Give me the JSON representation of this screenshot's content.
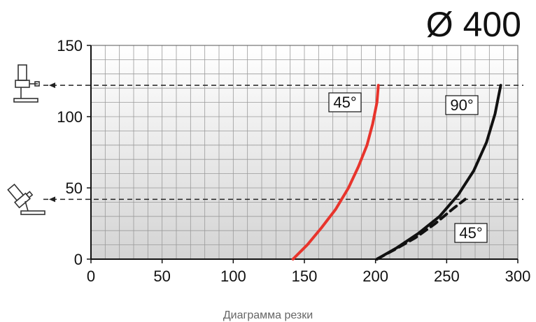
{
  "title": "Ø 400",
  "caption": "Диаграмма резки",
  "chart_data": {
    "type": "line",
    "xlim": [
      0,
      300
    ],
    "ylim": [
      0,
      150
    ],
    "x_ticks": [
      0,
      50,
      100,
      150,
      200,
      250,
      300
    ],
    "y_ticks": [
      0,
      50,
      100,
      150
    ],
    "grid": true,
    "reference_lines": [
      {
        "y": 122,
        "icon": "vertical-saw-head-icon"
      },
      {
        "y": 42,
        "icon": "tilted-saw-head-icon"
      }
    ],
    "series": [
      {
        "label": "45°",
        "color": "#e8342c",
        "style": "solid",
        "points": [
          [
            142,
            0
          ],
          [
            152,
            10
          ],
          [
            162,
            22
          ],
          [
            172,
            35
          ],
          [
            181,
            50
          ],
          [
            188,
            65
          ],
          [
            194,
            80
          ],
          [
            198,
            95
          ],
          [
            201,
            110
          ],
          [
            202,
            122
          ]
        ]
      },
      {
        "label": "90°",
        "color": "#111111",
        "style": "solid",
        "points": [
          [
            201,
            0
          ],
          [
            215,
            8
          ],
          [
            230,
            18
          ],
          [
            245,
            30
          ],
          [
            258,
            45
          ],
          [
            269,
            62
          ],
          [
            278,
            82
          ],
          [
            284,
            102
          ],
          [
            288,
            122
          ]
        ]
      },
      {
        "label": "45°",
        "color": "#111111",
        "style": "dashed",
        "points": [
          [
            201,
            0
          ],
          [
            214,
            7
          ],
          [
            228,
            15
          ],
          [
            242,
            25
          ],
          [
            254,
            35
          ],
          [
            263,
            42
          ]
        ]
      }
    ]
  }
}
